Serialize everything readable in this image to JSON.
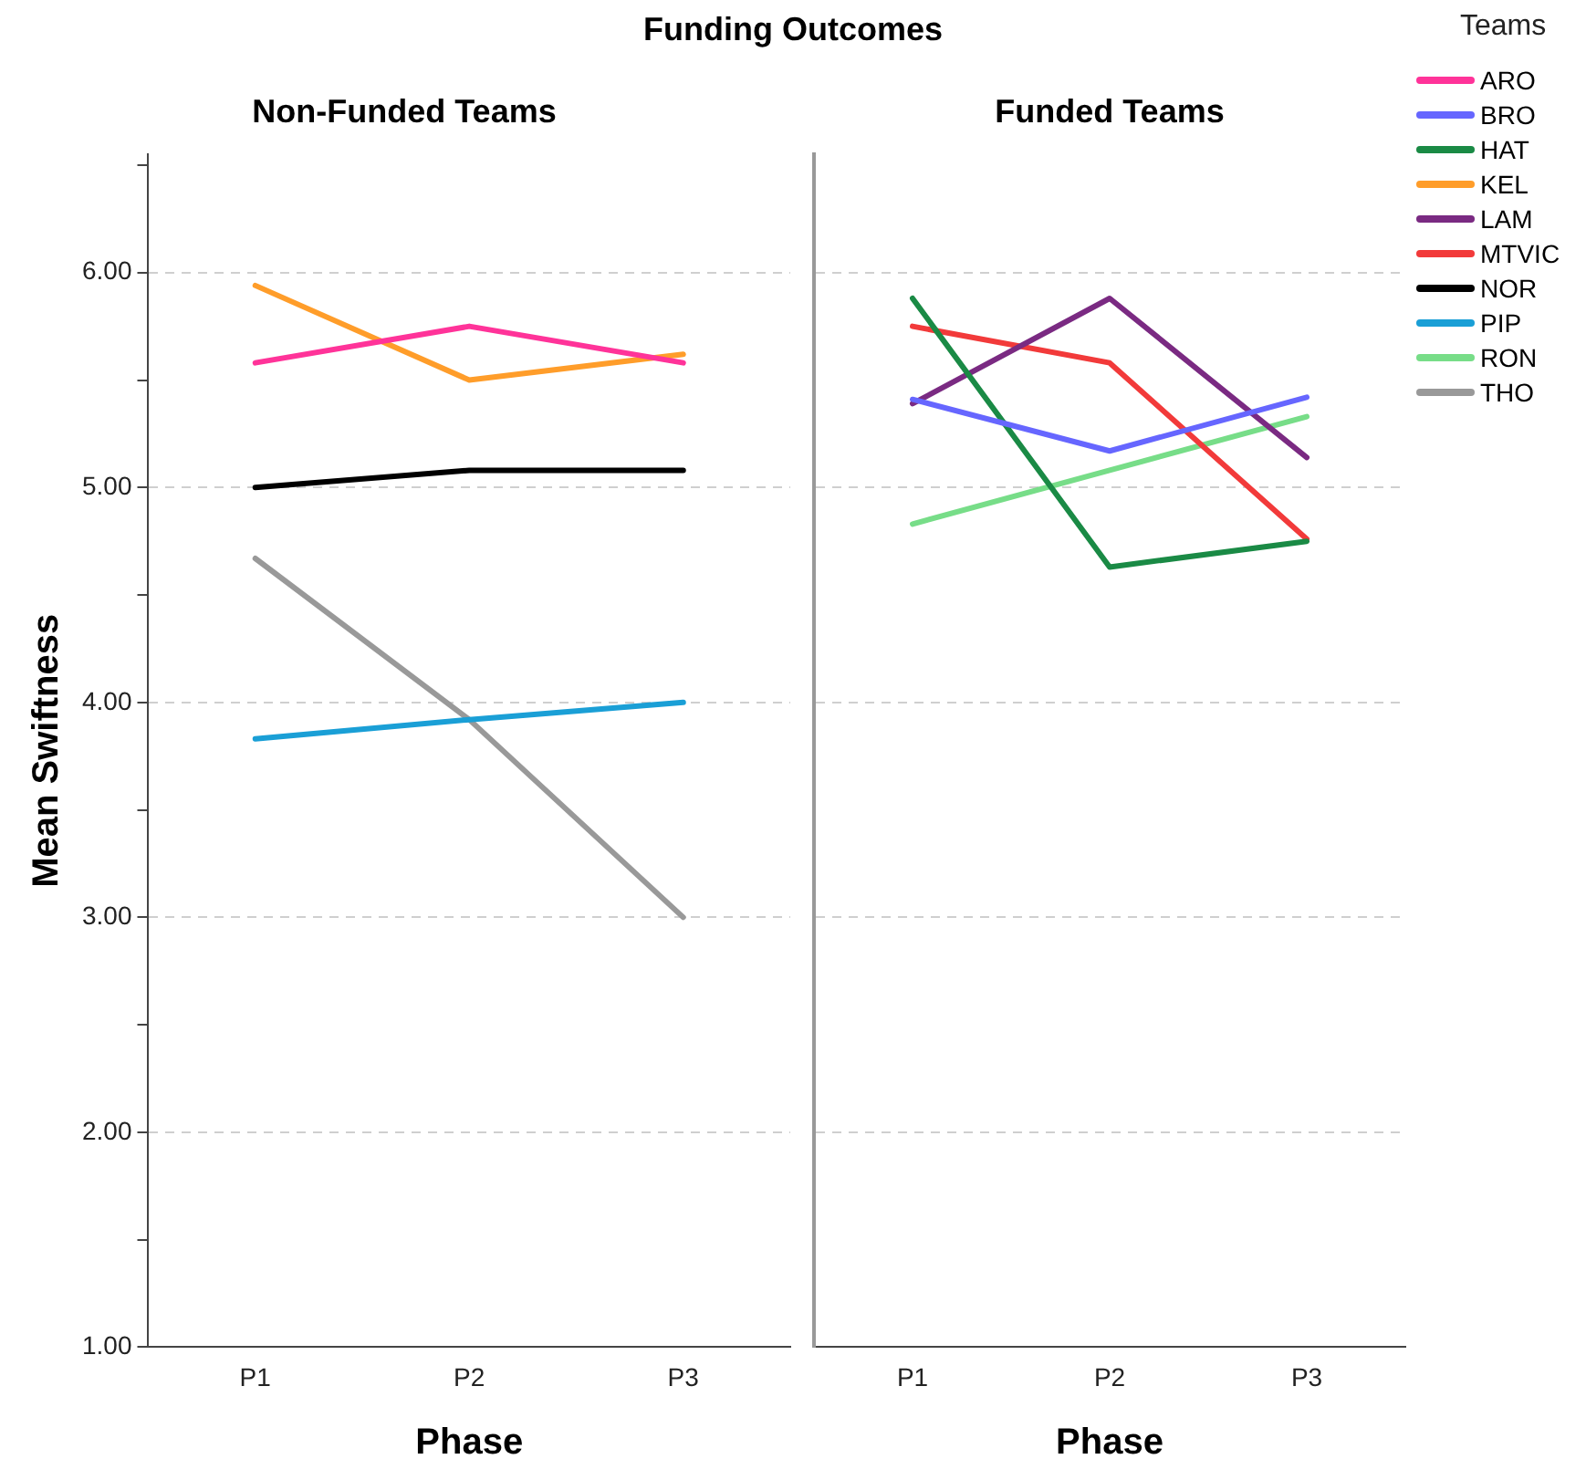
{
  "chart_data": [
    {
      "type": "line",
      "title": "Funding Outcomes",
      "subtitle": "Non-Funded Teams",
      "xlabel": "Phase",
      "ylabel": "Mean Swiftness",
      "categories": [
        "P1",
        "P2",
        "P3"
      ],
      "series": [
        {
          "name": "ARO",
          "color": "#ff3399",
          "values": [
            5.58,
            5.75,
            5.58
          ]
        },
        {
          "name": "KEL",
          "color": "#ff9d2a",
          "values": [
            5.94,
            5.5,
            5.62
          ]
        },
        {
          "name": "NOR",
          "color": "#000000",
          "values": [
            5.0,
            5.08,
            5.08
          ]
        },
        {
          "name": "PIP",
          "color": "#1a9fd6",
          "values": [
            3.83,
            3.92,
            4.0
          ]
        },
        {
          "name": "THO",
          "color": "#999999",
          "values": [
            4.67,
            3.92,
            3.0
          ]
        }
      ],
      "ylim": [
        1,
        6.55
      ],
      "yticks": [
        {
          "value": 1,
          "label": "1.00"
        },
        {
          "value": 1.5,
          "label": null
        },
        {
          "value": 2,
          "label": "2.00"
        },
        {
          "value": 2.5,
          "label": null
        },
        {
          "value": 3,
          "label": "3.00"
        },
        {
          "value": 3.5,
          "label": null
        },
        {
          "value": 4,
          "label": "4.00"
        },
        {
          "value": 4.5,
          "label": null
        },
        {
          "value": 5,
          "label": "5.00"
        },
        {
          "value": 5.5,
          "label": null
        },
        {
          "value": 6,
          "label": "6.00"
        },
        {
          "value": 6.5,
          "label": null
        }
      ],
      "grid": "y",
      "legend": "right",
      "legend_title": "Teams",
      "marker": "none",
      "line_style": "solid"
    },
    {
      "type": "line",
      "subtitle": "Funded Teams",
      "xlabel": "Phase",
      "categories": [
        "P1",
        "P2",
        "P3"
      ],
      "series": [
        {
          "name": "BRO",
          "color": "#6666ff",
          "values": [
            5.41,
            5.17,
            5.42
          ]
        },
        {
          "name": "HAT",
          "color": "#1a8a45",
          "values": [
            5.88,
            4.63,
            4.75
          ]
        },
        {
          "name": "LAM",
          "color": "#7a2a82",
          "values": [
            5.39,
            5.88,
            5.14
          ]
        },
        {
          "name": "MTVIC",
          "color": "#f23a3a",
          "values": [
            5.75,
            5.58,
            4.76
          ]
        },
        {
          "name": "RON",
          "color": "#77dd88",
          "values": [
            4.83,
            5.08,
            5.33
          ]
        }
      ],
      "ylim": [
        1,
        6.55
      ],
      "yticks": [
        {
          "value": 1,
          "label": null
        },
        {
          "value": 2,
          "label": null
        },
        {
          "value": 3,
          "label": null
        },
        {
          "value": 4,
          "label": null
        },
        {
          "value": 5,
          "label": null
        },
        {
          "value": 6,
          "label": null
        }
      ],
      "tick_labels": "x",
      "grid": "y",
      "legend": "right",
      "marker": "none",
      "line_style": "solid"
    }
  ]
}
